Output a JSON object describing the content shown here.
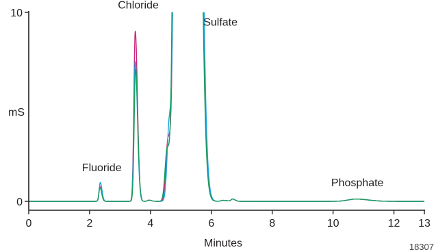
{
  "chart_data": {
    "type": "line",
    "xlabel": "Minutes",
    "ylabel": "mS",
    "xlim": [
      0,
      13
    ],
    "ylim": [
      0,
      10
    ],
    "x_ticks": [
      0,
      2,
      4,
      6,
      8,
      10,
      12,
      13
    ],
    "y_ticks": [
      0,
      10
    ],
    "figure_id": "18307",
    "grid": false,
    "annotations": [
      {
        "text": "Fluoride",
        "x": 2.4,
        "y": 1.6
      },
      {
        "text": "Chloride",
        "x": 3.6,
        "y": 10.2
      },
      {
        "text": "Sulfate",
        "x": 6.3,
        "y": 9.3
      },
      {
        "text": "Phosphate",
        "x": 10.8,
        "y": 0.8
      }
    ],
    "colors": {
      "axis": "#231f20",
      "text": "#231f20"
    },
    "series": [
      {
        "color": "#c8287a",
        "peaks": [
          {
            "x": 2.34,
            "h": 0.78,
            "w": 0.035
          },
          {
            "x": 3.5,
            "h": 9.0,
            "w": 0.045
          },
          {
            "x": 4.58,
            "h": 3.3,
            "w": 0.07
          },
          {
            "x": 4.9,
            "h": 60.0,
            "w": 0.09
          },
          {
            "x": 5.42,
            "h": 60.0,
            "w": 0.11
          }
        ]
      },
      {
        "color": "#17a6d9",
        "peaks": [
          {
            "x": 2.35,
            "h": 1.0,
            "w": 0.035
          },
          {
            "x": 3.5,
            "h": 7.4,
            "w": 0.045
          },
          {
            "x": 4.62,
            "h": 4.2,
            "w": 0.07
          },
          {
            "x": 4.91,
            "h": 60.0,
            "w": 0.09
          },
          {
            "x": 5.43,
            "h": 60.0,
            "w": 0.11
          }
        ]
      },
      {
        "color": "#1d9a5b",
        "peaks": [
          {
            "x": 2.34,
            "h": 0.72,
            "w": 0.035
          },
          {
            "x": 3.51,
            "h": 7.0,
            "w": 0.045
          },
          {
            "x": 4.55,
            "h": 2.8,
            "w": 0.07
          },
          {
            "x": 4.88,
            "h": 60.0,
            "w": 0.09
          },
          {
            "x": 5.4,
            "h": 60.0,
            "w": 0.11
          }
        ]
      }
    ],
    "small_features": [
      {
        "x": 3.95,
        "h": 0.06,
        "w": 0.05
      },
      {
        "x": 6.4,
        "h": 0.05,
        "w": 0.08
      },
      {
        "x": 6.7,
        "h": 0.12,
        "w": 0.05
      },
      {
        "x": 10.75,
        "h": 0.12,
        "w": 0.25
      }
    ]
  }
}
